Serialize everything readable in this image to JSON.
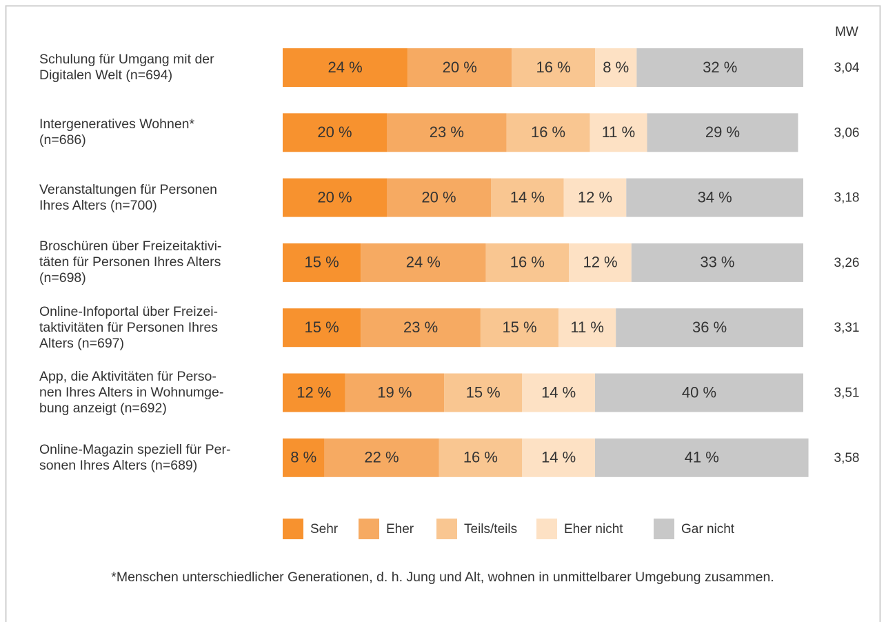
{
  "chart_data": {
    "type": "stacked_bar_horizontal",
    "categories": [
      "Schulung für Umgang mit der\nDigitalen Welt (n=694)",
      "Intergeneratives Wohnen*\n(n=686)",
      "Veranstaltungen für Personen\nIhres Alters (n=700)",
      "Broschüren über Freizeitaktivi-\ntäten für Personen Ihres Alters\n(n=698)",
      "Online-Infoportal über Freizei-\ntaktivitäten für Personen Ihres\nAlters (n=697)",
      "App, die Aktivitäten für Perso-\nnen Ihres Alters in Wohnumge-\nbung anzeigt (n=692)",
      "Online-Magazin speziell für Per-\nsonen Ihres Alters (n=689)"
    ],
    "series": [
      {
        "name": "Sehr",
        "color": "#f7922f",
        "values": [
          24,
          20,
          20,
          15,
          15,
          12,
          8
        ],
        "value_labels": [
          "24 %",
          "20 %",
          "20 %",
          "15 %",
          "15 %",
          "12 %",
          "8 %"
        ]
      },
      {
        "name": "Eher",
        "color": "#f6aa62",
        "values": [
          20,
          23,
          20,
          24,
          23,
          19,
          22
        ],
        "value_labels": [
          "20 %",
          "23 %",
          "20 %",
          "24 %",
          "23 %",
          "19 %",
          "22 %"
        ]
      },
      {
        "name": "Teils/teils",
        "color": "#f9c691",
        "values": [
          16,
          16,
          14,
          16,
          15,
          15,
          16
        ],
        "value_labels": [
          "16 %",
          "16 %",
          "14 %",
          "16 %",
          "15 %",
          "15 %",
          "16 %"
        ]
      },
      {
        "name": "Eher nicht",
        "color": "#fde1c4",
        "values": [
          8,
          11,
          12,
          12,
          11,
          14,
          14
        ],
        "value_labels": [
          "8 %",
          "11 %",
          "12 %",
          "12 %",
          "11 %",
          "14 %",
          "14 %"
        ]
      },
      {
        "name": "Gar nicht",
        "color": "#c8c8c8",
        "values": [
          32,
          29,
          34,
          33,
          36,
          40,
          41
        ],
        "value_labels": [
          "32 %",
          "29 %",
          "34 %",
          "33 %",
          "36 %",
          "40 %",
          "41 %"
        ]
      }
    ],
    "mw_header": "MW",
    "mw_values": [
      "3,04",
      "3,06",
      "3,18",
      "3,26",
      "3,31",
      "3,51",
      "3,58"
    ],
    "footnote": "*Menschen unterschiedlicher Generationen, d. h. Jung und Alt, wohnen in unmittelbarer Umgebung zusammen."
  }
}
